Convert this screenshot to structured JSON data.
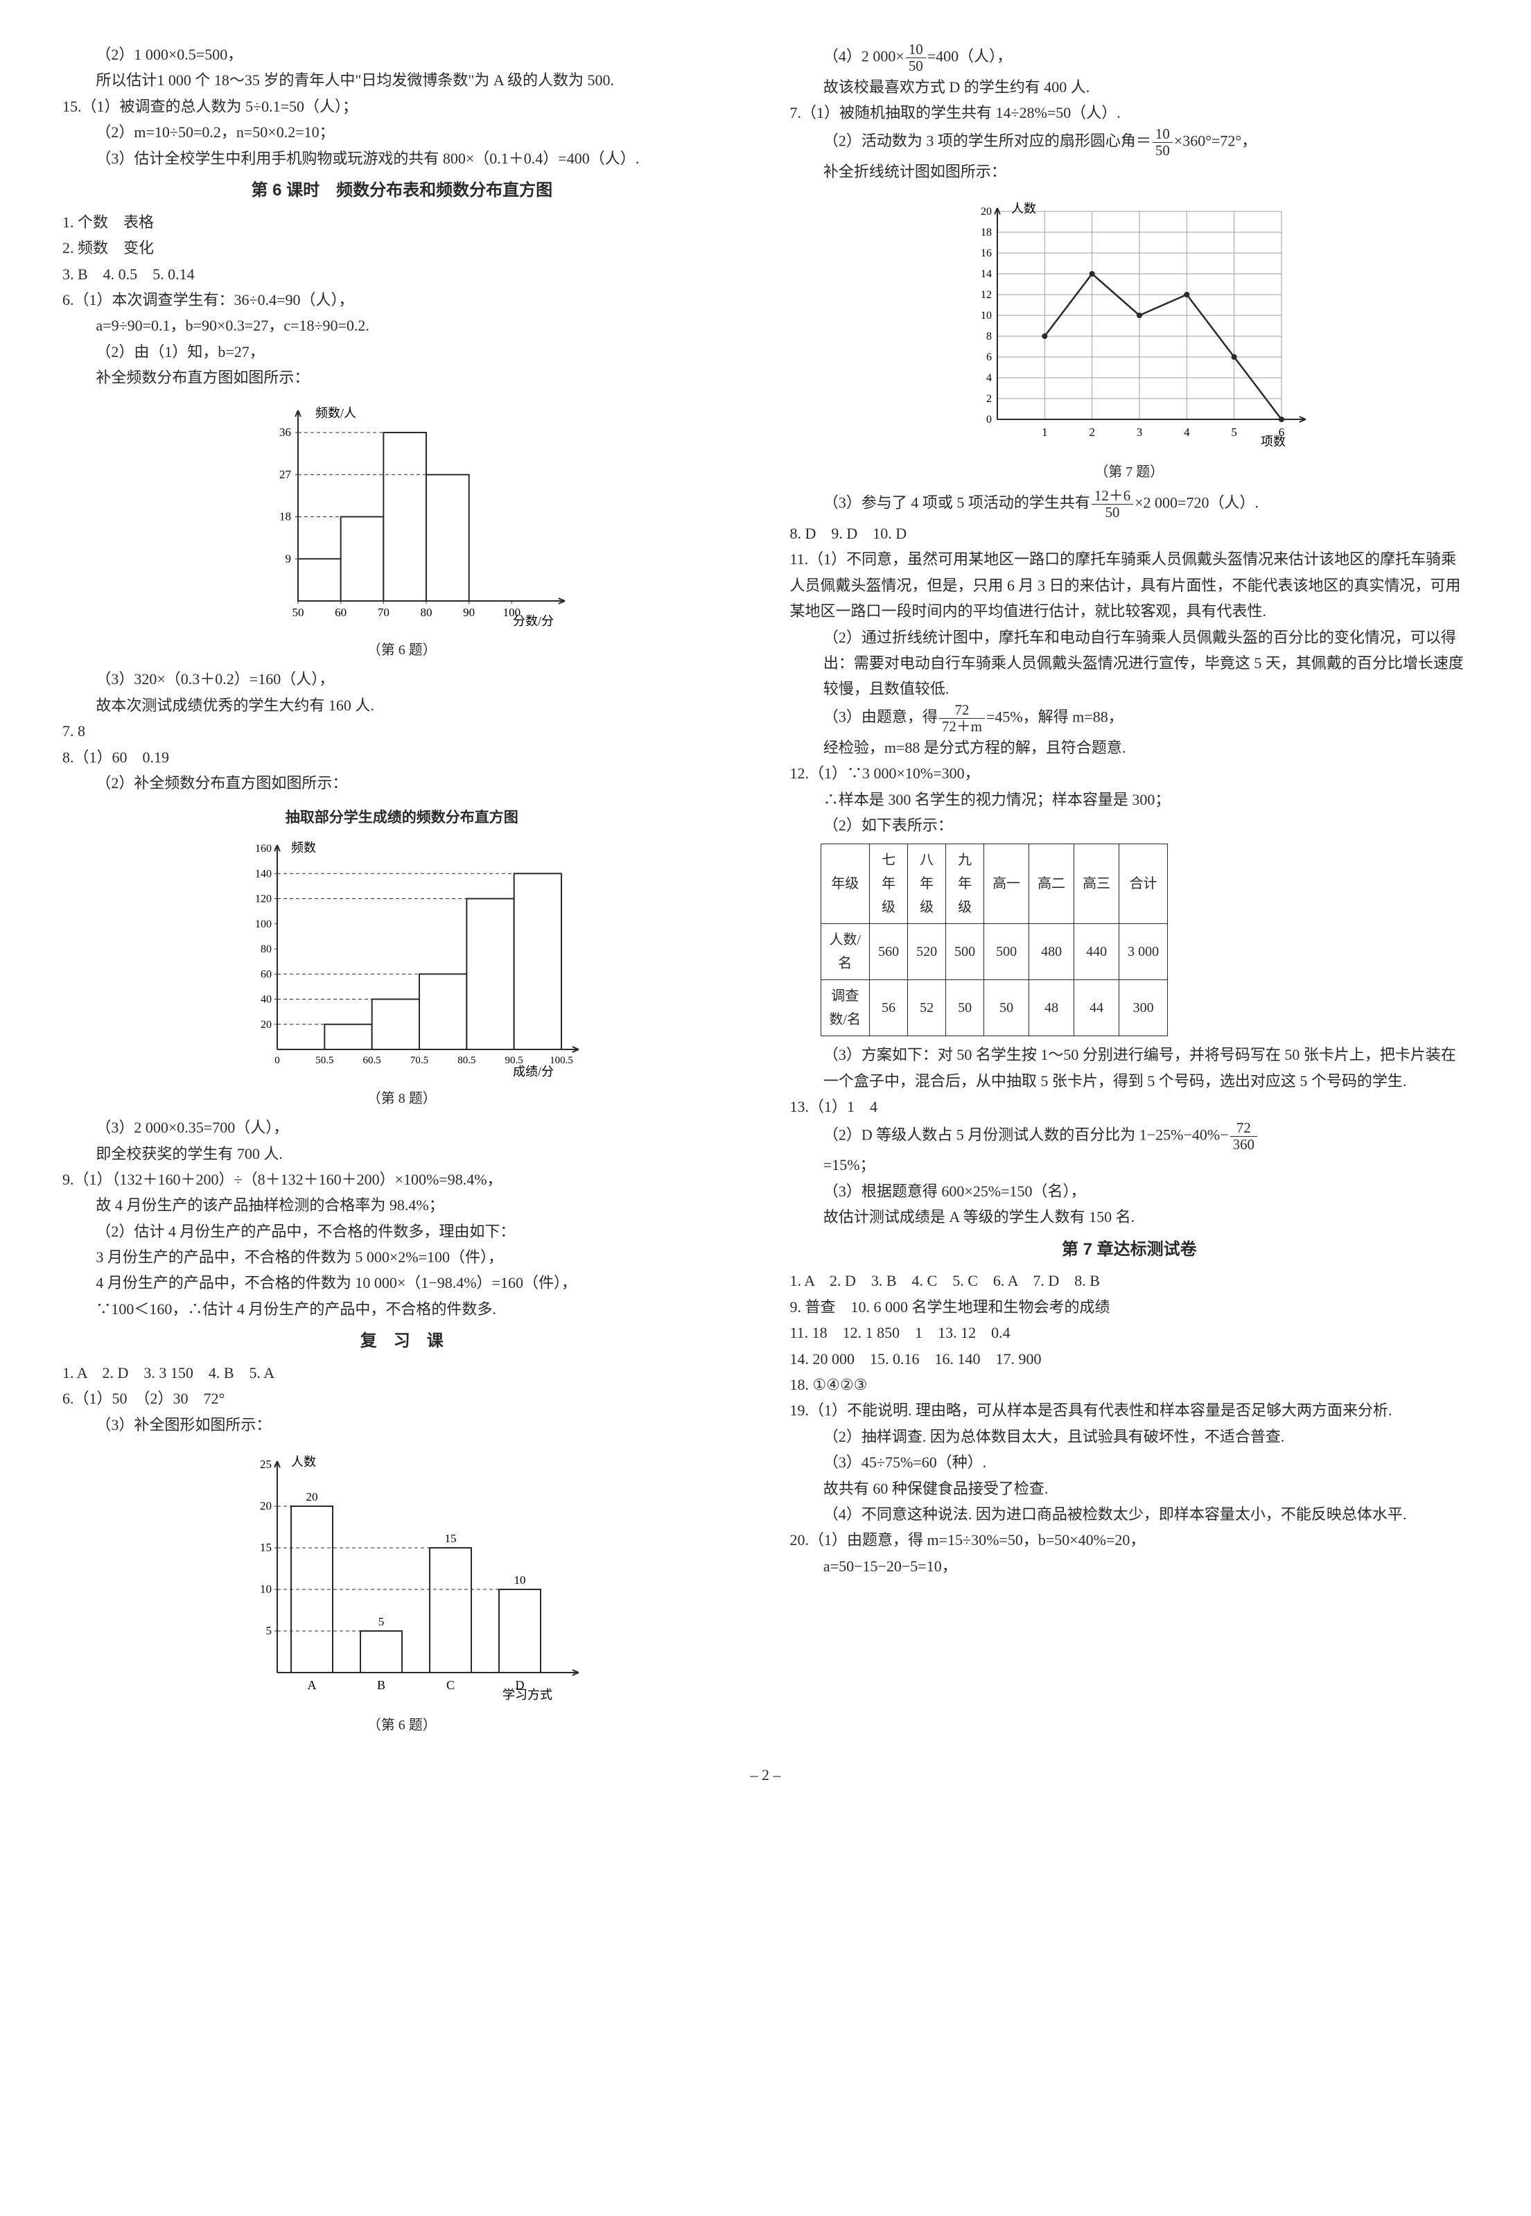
{
  "page_number": "– 2 –",
  "left": {
    "p14_2": "（2）1 000×0.5=500，",
    "p14_so": "所以估计1 000 个 18～35 岁的青年人中\"日均发微博条数\"为 A 级的人数为 500.",
    "p15_1": "15.（1）被调查的总人数为 5÷0.1=50（人）；",
    "p15_2": "（2）m=10÷50=0.2，n=50×0.2=10；",
    "p15_3": "（3）估计全校学生中利用手机购物或玩游戏的共有 800×（0.1＋0.4）=400（人）.",
    "sec6_title": "第 6 课时　频数分布表和频数分布直方图",
    "l1": "1. 个数　表格",
    "l2": "2. 频数　变化",
    "l3": "3. B　4. 0.5　5. 0.14",
    "l6_1": "6.（1）本次调查学生有：36÷0.4=90（人），",
    "l6_1b": "a=9÷90=0.1，b=90×0.3=27，c=18÷90=0.2.",
    "l6_2": "（2）由（1）知，b=27，",
    "l6_2b": "补全频数分布直方图如图所示：",
    "hist6": {
      "ylabel": "频数/人",
      "xlabel": "分数/分",
      "caption": "（第 6 题）",
      "xticks": [
        "50",
        "60",
        "70",
        "80",
        "90",
        "100"
      ],
      "yticks": [
        "9",
        "18",
        "27",
        "36"
      ],
      "bars": [
        9,
        18,
        36,
        27
      ],
      "bar_color": "#ffffff",
      "border": "#2a2a2a"
    },
    "l6_3": "（3）320×（0.3＋0.2）=160（人），",
    "l6_3b": "故本次测试成绩优秀的学生大约有 160 人.",
    "l7": "7. 8",
    "l8_1": "8.（1）60　0.19",
    "l8_2": "（2）补全频数分布直方图如图所示：",
    "hist8": {
      "title": "抽取部分学生成绩的频数分布直方图",
      "ylabel": "频数",
      "xlabel": "成绩/分",
      "caption": "（第 8 题）",
      "xticks": [
        "0",
        "50.5",
        "60.5",
        "70.5",
        "80.5",
        "90.5",
        "100.5"
      ],
      "yticks": [
        "20",
        "40",
        "60",
        "80",
        "100",
        "120",
        "140",
        "160"
      ],
      "bars": [
        20,
        40,
        60,
        120,
        140
      ],
      "bar_color": "#ffffff",
      "border": "#2a2a2a"
    },
    "l8_3": "（3）2 000×0.35=700（人），",
    "l8_3b": "即全校获奖的学生有 700 人.",
    "l9_1": "9.（1）（132＋160＋200）÷（8＋132＋160＋200）×100%=98.4%，",
    "l9_1b": "故 4 月份生产的该产品抽样检测的合格率为 98.4%；",
    "l9_2": "（2）估计 4 月份生产的产品中，不合格的件数多，理由如下：",
    "l9_2b": "3 月份生产的产品中，不合格的件数为 5 000×2%=100（件），",
    "l9_2c": "4 月份生产的产品中，不合格的件数为 10 000×（1−98.4%）=160（件），",
    "l9_2d": "∵100＜160，∴估计 4 月份生产的产品中，不合格的件数多.",
    "rev_title": "复　习　课",
    "r1": "1. A　2. D　3. 3 150　4. B　5. A",
    "r6_1": "6.（1）50　（2）30　72°",
    "r6_3": "（3）补全图形如图所示：",
    "bar6r": {
      "ylabel": "人数",
      "xlabel": "学习方式",
      "caption": "（第 6 题）",
      "xticks": [
        "A",
        "B",
        "C",
        "D"
      ],
      "yticks": [
        "5",
        "10",
        "15",
        "20",
        "25"
      ],
      "bars": [
        20,
        5,
        15,
        10
      ],
      "labels": [
        "20",
        "5",
        "15",
        "10"
      ],
      "bar_color": "#ffffff",
      "border": "#2a2a2a"
    }
  },
  "right": {
    "r6_4_pre": "（4）2 000×",
    "r6_4_frac_n": "10",
    "r6_4_frac_d": "50",
    "r6_4_post": "=400（人），",
    "r6_4b": "故该校最喜欢方式 D 的学生约有 400 人.",
    "r7_1": "7.（1）被随机抽取的学生共有 14÷28%=50（人）.",
    "r7_2_pre": "（2）活动数为 3 项的学生所对应的扇形圆心角＝",
    "r7_2_frac_n": "10",
    "r7_2_frac_d": "50",
    "r7_2_post": "×360°=72°，",
    "r7_2b": "补全折线统计图如图所示：",
    "line7": {
      "ylabel": "人数",
      "xlabel": "项数",
      "caption": "（第 7 题）",
      "xticks": [
        "1",
        "2",
        "3",
        "4",
        "5",
        "6"
      ],
      "yticks": [
        "0",
        "2",
        "4",
        "6",
        "8",
        "10",
        "12",
        "14",
        "16",
        "18",
        "20"
      ],
      "points": [
        [
          1,
          8
        ],
        [
          2,
          14
        ],
        [
          3,
          10
        ],
        [
          4,
          12
        ],
        [
          5,
          6
        ],
        [
          6,
          0
        ]
      ],
      "line_color": "#2a2a2a",
      "grid_color": "#9e9e9e"
    },
    "r7_3_pre": "（3）参与了 4 项或 5 项活动的学生共有",
    "r7_3_frac_n": "12＋6",
    "r7_3_frac_d": "50",
    "r7_3_post": "×2 000=720（人）.",
    "r8910": "8. D　9. D　10. D",
    "r11_1": "11.（1）不同意，虽然可用某地区一路口的摩托车骑乘人员佩戴头盔情况来估计该地区的摩托车骑乘人员佩戴头盔情况，但是，只用 6 月 3 日的来估计，具有片面性，不能代表该地区的真实情况，可用某地区一路口一段时间内的平均值进行估计，就比较客观，具有代表性.",
    "r11_2": "（2）通过折线统计图中，摩托车和电动自行车骑乘人员佩戴头盔的百分比的变化情况，可以得出：需要对电动自行车骑乘人员佩戴头盔情况进行宣传，毕竟这 5 天，其佩戴的百分比增长速度较慢，且数值较低.",
    "r11_3_pre": "（3）由题意，得",
    "r11_3_frac_n": "72",
    "r11_3_frac_d": "72＋m",
    "r11_3_post": "=45%，解得 m=88，",
    "r11_3b": "经检验，m=88 是分式方程的解，且符合题意.",
    "r12_1": "12.（1）∵3 000×10%=300，",
    "r12_1b": "∴样本是 300 名学生的视力情况；样本容量是 300；",
    "r12_2": "（2）如下表所示：",
    "table12": {
      "headers": [
        "年级",
        "七\n年\n级",
        "八\n年\n级",
        "九\n年\n级",
        "高一",
        "高二",
        "高三",
        "合计"
      ],
      "rows": [
        [
          "人数/\n名",
          "560",
          "520",
          "500",
          "500",
          "480",
          "440",
          "3 000"
        ],
        [
          "调查\n数/名",
          "56",
          "52",
          "50",
          "50",
          "48",
          "44",
          "300"
        ]
      ]
    },
    "r12_3": "（3）方案如下：对 50 名学生按 1～50 分别进行编号，并将号码写在 50 张卡片上，把卡片装在一个盒子中，混合后，从中抽取 5 张卡片，得到 5 个号码，选出对应这 5 个号码的学生.",
    "r13_1": "13.（1）1　4",
    "r13_2_pre": "（2）D 等级人数占 5 月份测试人数的百分比为 1−25%−40%−",
    "r13_2_frac_n": "72",
    "r13_2_frac_d": "360",
    "r13_2b": "=15%；",
    "r13_3": "（3）根据题意得 600×25%=150（名），",
    "r13_3b": "故估计测试成绩是 A 等级的学生人数有 150 名.",
    "ch7_title": "第 7 章达标测试卷",
    "c1": "1. A　2. D　3. B　4. C　5. C　6. A　7. D　8. B",
    "c9": "9. 普查　10. 6 000 名学生地理和生物会考的成绩",
    "c11": "11. 18　12. 1 850　1　13. 12　0.4",
    "c14": "14. 20 000　15. 0.16　16. 140　17. 900",
    "c18": "18. ①④②③",
    "c19_1": "19.（1）不能说明. 理由略，可从样本是否具有代表性和样本容量是否足够大两方面来分析.",
    "c19_2": "（2）抽样调查. 因为总体数目太大，且试验具有破坏性，不适合普查.",
    "c19_3": "（3）45÷75%=60（种）.",
    "c19_3b": "故共有 60 种保健食品接受了检查.",
    "c19_4": "（4）不同意这种说法. 因为进口商品被检数太少，即样本容量太小，不能反映总体水平.",
    "c20_1": "20.（1）由题意，得 m=15÷30%=50，b=50×40%=20，",
    "c20_1b": "a=50−15−20−5=10，"
  }
}
